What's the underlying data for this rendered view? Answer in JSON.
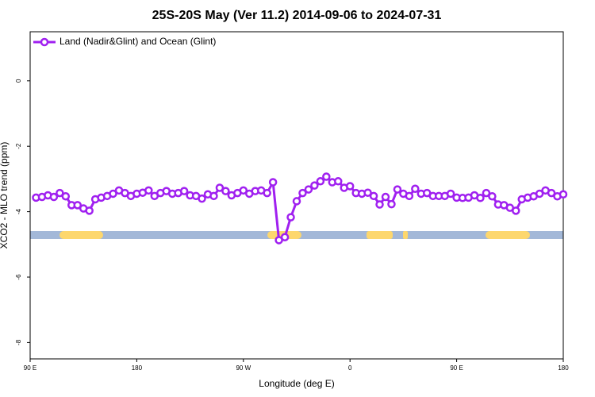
{
  "chart_data": {
    "type": "line",
    "title": "25S-20S May (Ver 11.2)   2014-09-06 to 2024-07-31",
    "xlabel": "Longitude (deg E)",
    "ylabel": "XCO2 - MLO trend (ppm)",
    "xlim": [
      90,
      540
    ],
    "ylim": [
      -8.5,
      1.5
    ],
    "xticks": [
      {
        "value": 90,
        "label": "90 E"
      },
      180,
      {
        "value": 270,
        "label": "90 W"
      },
      {
        "value": 360,
        "label": "0"
      },
      {
        "value": 450,
        "label": "90 E"
      },
      {
        "value": 540,
        "label": "180"
      }
    ],
    "yticks": [
      0,
      -2,
      -4,
      -6,
      -8
    ],
    "legend": "upper left",
    "x": [
      95,
      100,
      105,
      110,
      115,
      120,
      125,
      130,
      135,
      140,
      145,
      150,
      155,
      160,
      165,
      170,
      175,
      180,
      185,
      190,
      195,
      200,
      205,
      210,
      215,
      220,
      225,
      230,
      235,
      240,
      245,
      250,
      255,
      260,
      265,
      270,
      275,
      280,
      285,
      290,
      295,
      300,
      305,
      310,
      315,
      320,
      325,
      330,
      335,
      340,
      345,
      350,
      355,
      360,
      365,
      370,
      375,
      380,
      385,
      390,
      395,
      400,
      405,
      410,
      415,
      420,
      425,
      430,
      435,
      440,
      445,
      450,
      455,
      460,
      465,
      470,
      475,
      480,
      485,
      490,
      495,
      500,
      505,
      510,
      515,
      520,
      525,
      530,
      535,
      540
    ],
    "series": [
      {
        "name": "Land (Nadir&Glint) and Ocean (Glint)",
        "color": "#a020f0",
        "values": [
          -3.57,
          -3.55,
          -3.5,
          -3.55,
          -3.43,
          -3.53,
          -3.8,
          -3.8,
          -3.9,
          -3.97,
          -3.62,
          -3.57,
          -3.52,
          -3.45,
          -3.35,
          -3.43,
          -3.52,
          -3.45,
          -3.42,
          -3.35,
          -3.52,
          -3.43,
          -3.37,
          -3.45,
          -3.43,
          -3.37,
          -3.5,
          -3.52,
          -3.6,
          -3.47,
          -3.52,
          -3.27,
          -3.37,
          -3.5,
          -3.43,
          -3.35,
          -3.45,
          -3.37,
          -3.35,
          -3.43,
          -3.1,
          -4.87,
          -4.78,
          -4.17,
          -3.68,
          -3.43,
          -3.32,
          -3.2,
          -3.07,
          -2.93,
          -3.1,
          -3.07,
          -3.27,
          -3.22,
          -3.43,
          -3.45,
          -3.42,
          -3.52,
          -3.78,
          -3.55,
          -3.77,
          -3.32,
          -3.45,
          -3.52,
          -3.3,
          -3.45,
          -3.43,
          -3.52,
          -3.52,
          -3.52,
          -3.45,
          -3.57,
          -3.58,
          -3.57,
          -3.5,
          -3.58,
          -3.43,
          -3.53,
          -3.78,
          -3.8,
          -3.88,
          -3.97,
          -3.62,
          -3.57,
          -3.53,
          -3.45,
          -3.35,
          -3.43,
          -3.53,
          -3.47
        ]
      }
    ]
  }
}
